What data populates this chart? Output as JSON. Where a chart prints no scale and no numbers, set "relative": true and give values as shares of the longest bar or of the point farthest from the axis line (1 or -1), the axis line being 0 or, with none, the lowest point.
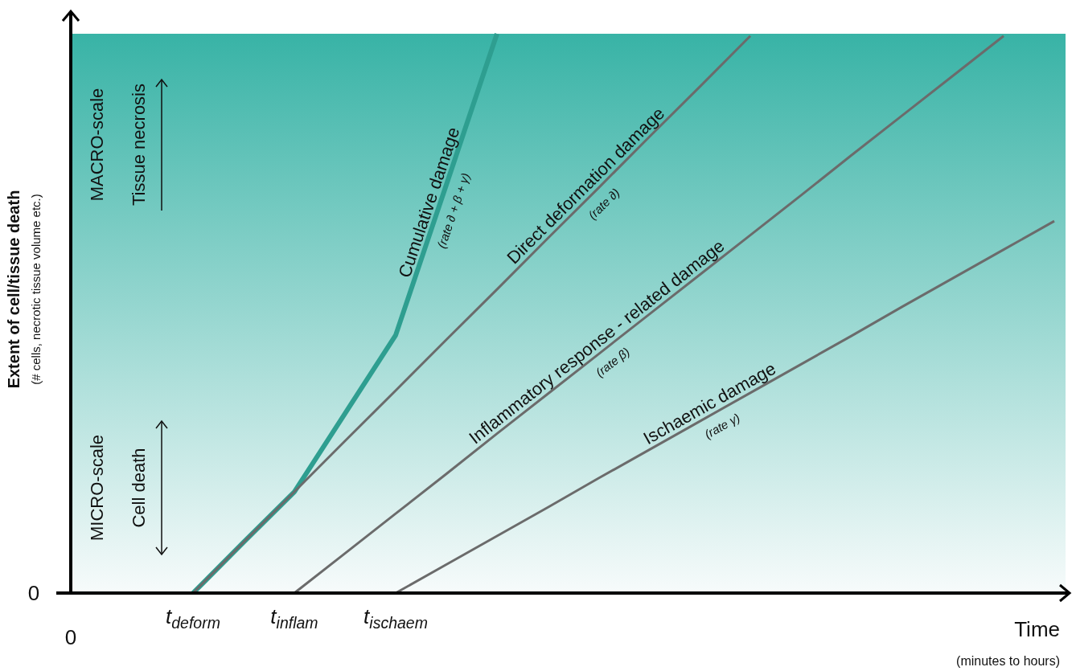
{
  "chart_data": {
    "type": "line",
    "relative": true,
    "xlabel": "Time",
    "categories": [
      "t$_{deform}$",
      null,
      "t$_{inflam}$",
      null,
      "t$_{ischaem}$",
      null,
      null,
      null,
      null,
      null,
      null,
      null,
      null,
      null,
      null,
      null,
      null,
      null
    ],
    "series": [
      {
        "name": "Cumulative damage",
        "color": "#2e9e90",
        "values": [
          0,
          0.091,
          0.181,
          0.321,
          0.461,
          0.73,
          1,
          null,
          null,
          null,
          null,
          null,
          null,
          null,
          null,
          null,
          null,
          null
        ]
      },
      {
        "name": "Direct deformation damage",
        "color": "#6b6b6b",
        "values": [
          0,
          0.091,
          0.181,
          0.272,
          0.362,
          0.453,
          0.543,
          0.634,
          0.724,
          0.815,
          0.905,
          0.996,
          null,
          null,
          null,
          null,
          null,
          null
        ]
      },
      {
        "name": "Inflammatory response - related damage",
        "color": "#6b6b6b",
        "values": [
          null,
          null,
          0,
          0.071,
          0.142,
          0.213,
          0.285,
          0.356,
          0.427,
          0.498,
          0.569,
          0.64,
          0.711,
          0.783,
          0.854,
          0.925,
          0.996,
          null
        ]
      },
      {
        "name": "Ischaemic damage",
        "color": "#6b6b6b",
        "values": [
          null,
          null,
          null,
          null,
          0,
          0.051,
          0.102,
          0.153,
          0.205,
          0.256,
          0.307,
          0.358,
          0.409,
          0.46,
          0.512,
          0.563,
          0.614,
          0.665
        ]
      }
    ],
    "annotations": [
      "(rate ∂ + β + γ)",
      "(rate ∂)",
      "(rate β)",
      "(rate γ)",
      "MACRO-scale",
      "Tissue necrosis",
      "MICRO-scale",
      "Cell death",
      "(# cells, necrotic tissue volume etc.)",
      "(minutes to hours)",
      "0",
      "0",
      "Extent of cell/tissue death"
    ]
  }
}
